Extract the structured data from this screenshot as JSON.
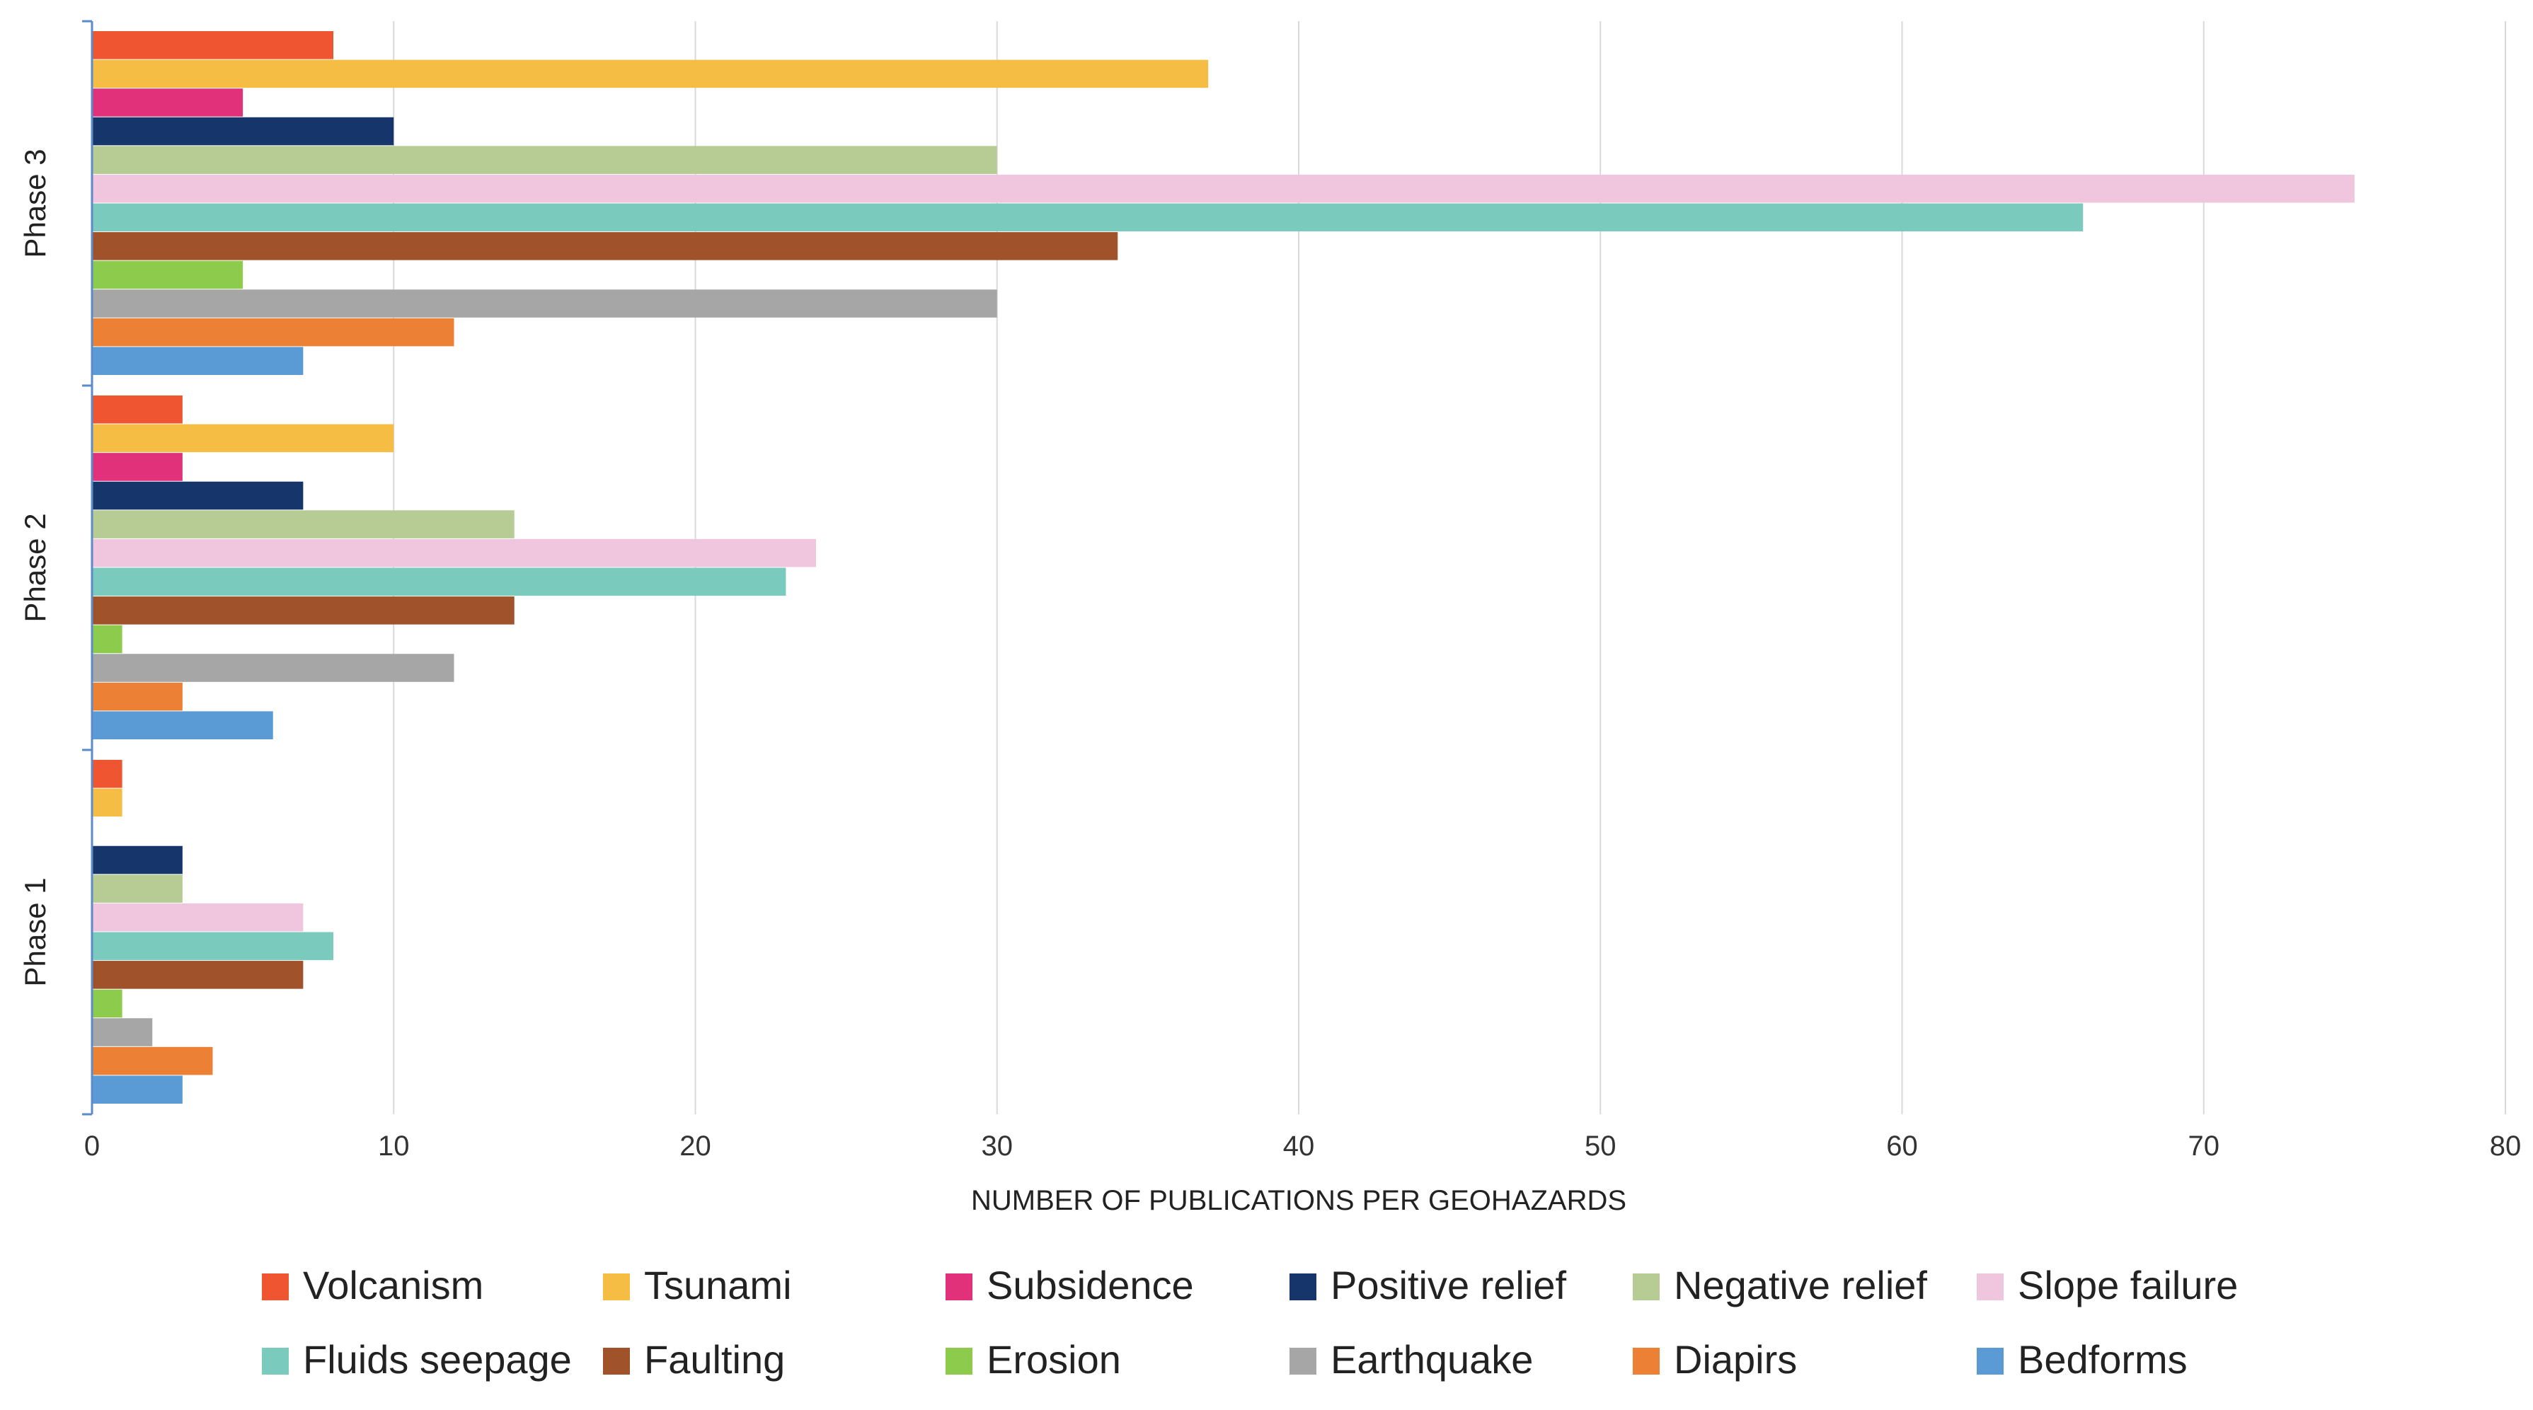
{
  "chart_data": {
    "type": "bar",
    "orientation": "horizontal",
    "title": "",
    "xlabel": "NUMBER OF PUBLICATIONS PER GEOHAZARDS",
    "ylabel": "",
    "xlim": [
      0,
      80
    ],
    "xticks": [
      0,
      10,
      20,
      30,
      40,
      50,
      60,
      70,
      80
    ],
    "grid": true,
    "legend_position": "bottom",
    "categories": [
      "Phase 3",
      "Phase 2",
      "Phase 1"
    ],
    "series": [
      {
        "name": "Volcanism",
        "color": "#EE5530",
        "values": [
          8,
          3,
          1
        ]
      },
      {
        "name": "Tsunami",
        "color": "#F6BD45",
        "values": [
          37,
          10,
          1
        ]
      },
      {
        "name": "Subsidence",
        "color": "#E0317A",
        "values": [
          5,
          3,
          0
        ]
      },
      {
        "name": "Positive relief",
        "color": "#16356A",
        "values": [
          10,
          7,
          3
        ]
      },
      {
        "name": "Negative relief",
        "color": "#B7CC94",
        "values": [
          30,
          14,
          3
        ]
      },
      {
        "name": "Slope failure",
        "color": "#F0C6DE",
        "values": [
          75,
          24,
          7
        ]
      },
      {
        "name": "Fluids seepage",
        "color": "#7ACBBE",
        "values": [
          66,
          23,
          8
        ]
      },
      {
        "name": "Faulting",
        "color": "#A0532A",
        "values": [
          34,
          14,
          7
        ]
      },
      {
        "name": "Erosion",
        "color": "#8CCB4C",
        "values": [
          5,
          1,
          1
        ]
      },
      {
        "name": "Earthquake",
        "color": "#A6A6A6",
        "values": [
          30,
          12,
          2
        ]
      },
      {
        "name": "Diapirs",
        "color": "#EC8035",
        "values": [
          12,
          3,
          4
        ]
      },
      {
        "name": "Bedforms",
        "color": "#5B9BD5",
        "values": [
          7,
          6,
          3
        ]
      }
    ]
  }
}
